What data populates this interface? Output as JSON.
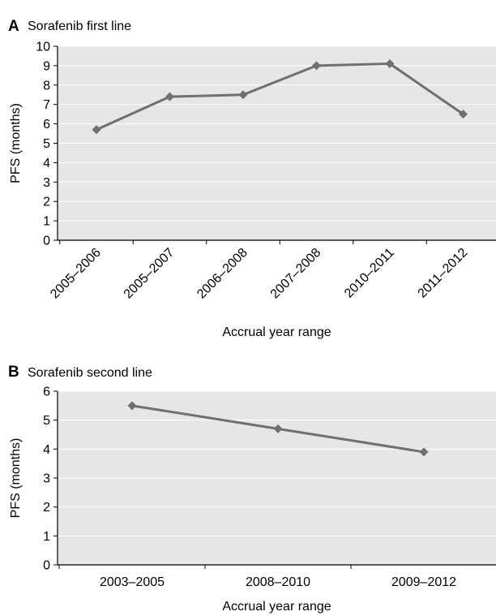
{
  "chart_data": [
    {
      "panel": "A",
      "type": "line",
      "title": "Sorafenib first line",
      "xlabel": "Accrual year range",
      "ylabel": "PFS (months)",
      "categories": [
        "2005–2006",
        "2005–2007",
        "2006–2008",
        "2007–2008",
        "2010–2011",
        "2011–2012"
      ],
      "values": [
        5.7,
        7.4,
        7.5,
        9.0,
        9.1,
        6.5
      ],
      "ylim": [
        0,
        10
      ],
      "yticks": [
        0,
        1,
        2,
        3,
        4,
        5,
        6,
        7,
        8,
        9,
        10
      ],
      "grid": true,
      "marker": "diamond",
      "line_color": "#6f6f6f",
      "plot_bg": "#e6e6e6"
    },
    {
      "panel": "B",
      "type": "line",
      "title": "Sorafenib second line",
      "xlabel": "Accrual year range",
      "ylabel": "PFS (months)",
      "categories": [
        "2003–2005",
        "2008–2010",
        "2009–2012"
      ],
      "values": [
        5.5,
        4.7,
        3.9
      ],
      "ylim": [
        0,
        6
      ],
      "yticks": [
        0,
        1,
        2,
        3,
        4,
        5,
        6
      ],
      "grid": true,
      "marker": "diamond",
      "line_color": "#6f6f6f",
      "plot_bg": "#e6e6e6"
    }
  ]
}
